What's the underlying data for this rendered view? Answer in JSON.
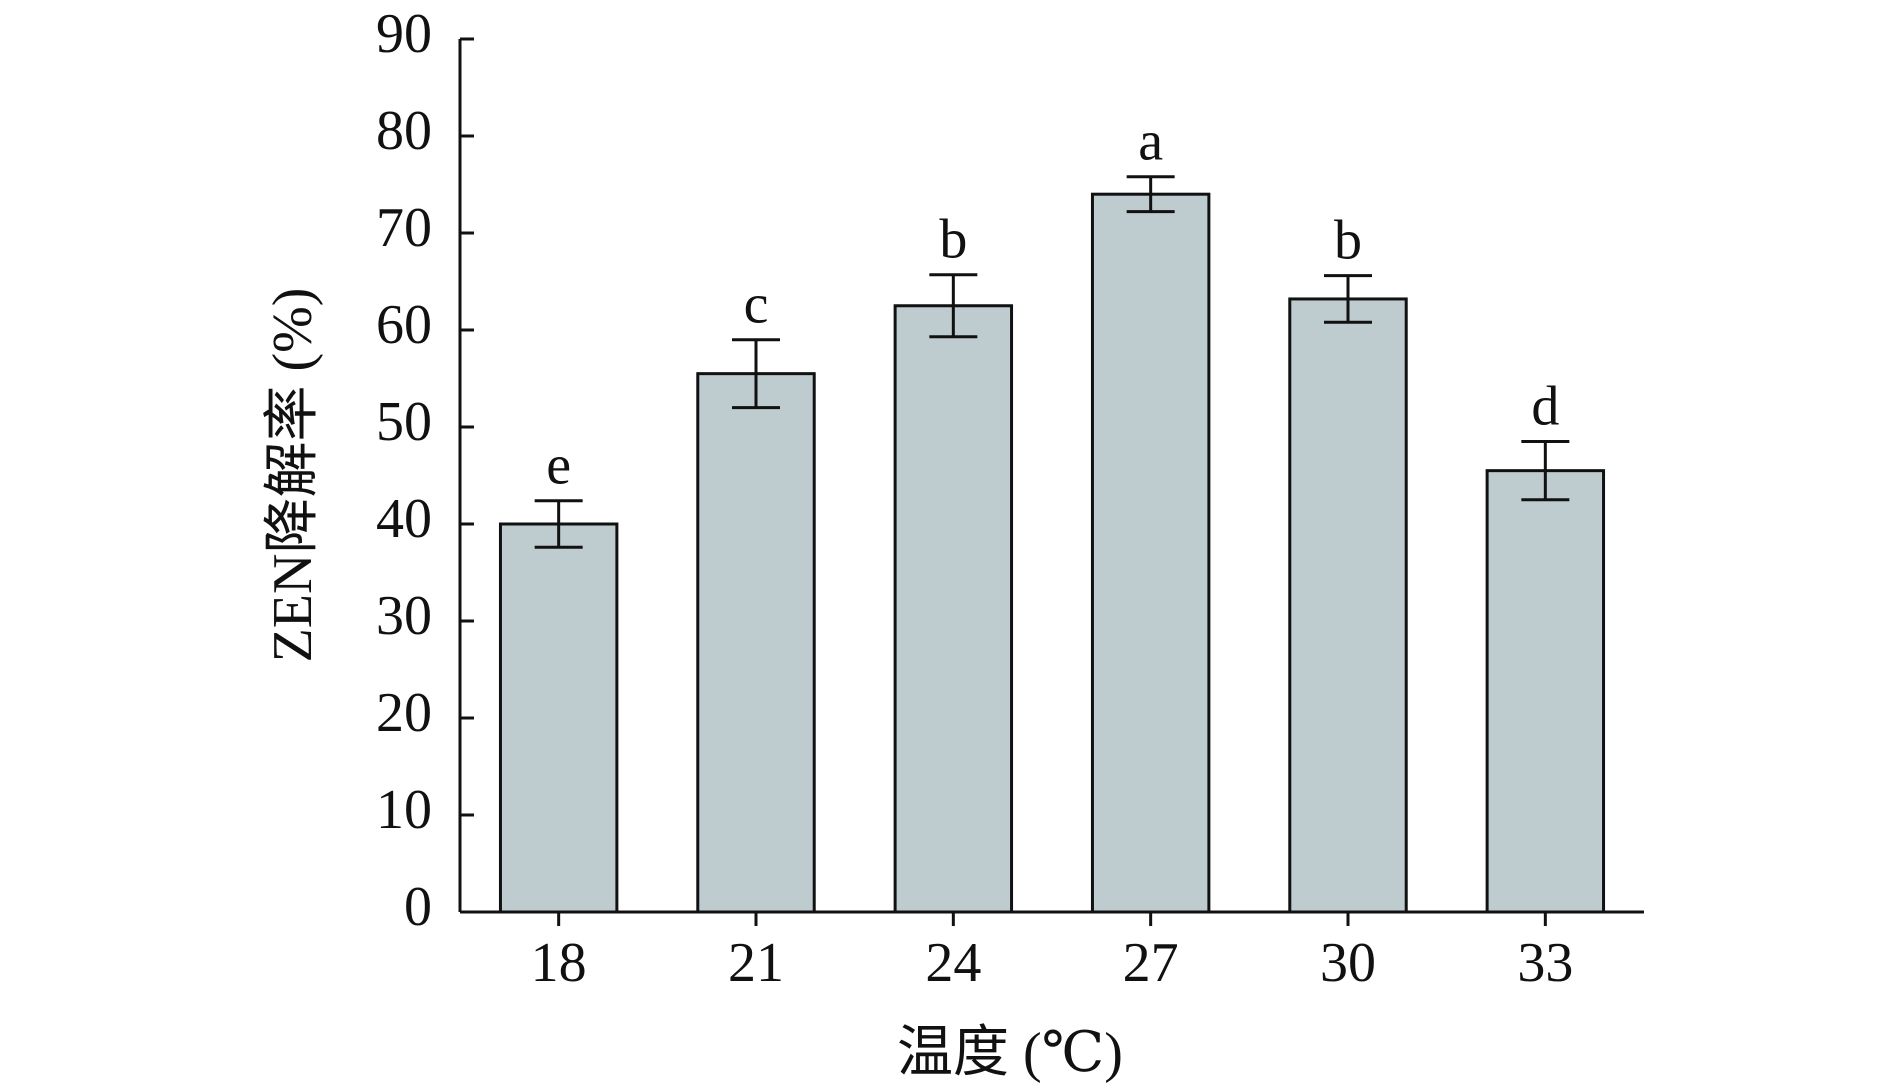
{
  "chart_data": {
    "type": "bar",
    "x_label": "温度 (℃)",
    "y_label": "ZEN降解率 (%)",
    "categories": [
      "18",
      "21",
      "24",
      "27",
      "30",
      "33"
    ],
    "values": [
      40,
      55.5,
      62.5,
      74,
      63.2,
      45.5
    ],
    "errors": [
      2.4,
      3.5,
      3.2,
      1.8,
      2.4,
      3
    ],
    "annotations": [
      "e",
      "c",
      "b",
      "a",
      "b",
      "d"
    ],
    "color": "#bfcccf",
    "ylim": [
      0,
      90
    ],
    "yticks": [
      0,
      10,
      20,
      30,
      40,
      50,
      60,
      70,
      80,
      90
    ]
  }
}
